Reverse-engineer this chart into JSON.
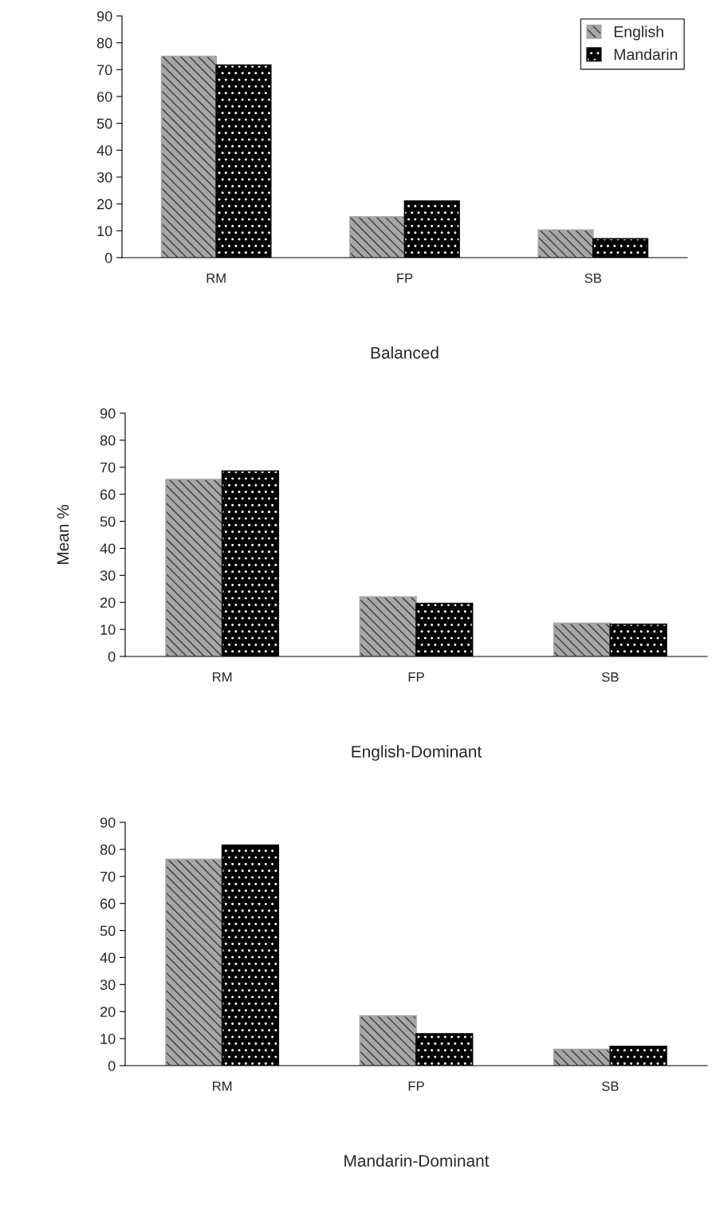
{
  "chart_data": [
    {
      "type": "bar",
      "xlabel": "Balanced",
      "categories": [
        "RM",
        "FP",
        "SB"
      ],
      "ylim": [
        0,
        90
      ],
      "yticks": [
        0,
        10,
        20,
        30,
        40,
        50,
        60,
        70,
        80,
        90
      ],
      "legend": "top right",
      "series": [
        {
          "name": "English",
          "color": "#a6a6a6",
          "values": [
            75.0,
            15.2,
            10.3
          ]
        },
        {
          "name": "Mandarin",
          "color": "#000000",
          "values": [
            71.7,
            21.1,
            7.0
          ]
        }
      ]
    },
    {
      "type": "bar",
      "xlabel": "English-Dominant",
      "ylabel": "Mean %",
      "categories": [
        "RM",
        "FP",
        "SB"
      ],
      "ylim": [
        0,
        90
      ],
      "yticks": [
        0,
        10,
        20,
        30,
        40,
        50,
        60,
        70,
        80,
        90
      ],
      "series": [
        {
          "color": "#a6a6a6",
          "values": [
            65.5,
            22.0,
            12.3
          ]
        },
        {
          "color": "#000000",
          "values": [
            68.6,
            19.6,
            11.9
          ]
        }
      ]
    },
    {
      "type": "bar",
      "xlabel": "Mandarin-Dominant",
      "categories": [
        "RM",
        "FP",
        "SB"
      ],
      "ylim": [
        0,
        90
      ],
      "yticks": [
        0,
        10,
        20,
        30,
        40,
        50,
        60,
        70,
        80,
        90
      ],
      "series": [
        {
          "color": "#a6a6a6",
          "values": [
            76.3,
            18.4,
            6.0
          ]
        },
        {
          "color": "#000000",
          "values": [
            81.6,
            11.8,
            7.1
          ]
        }
      ]
    }
  ]
}
